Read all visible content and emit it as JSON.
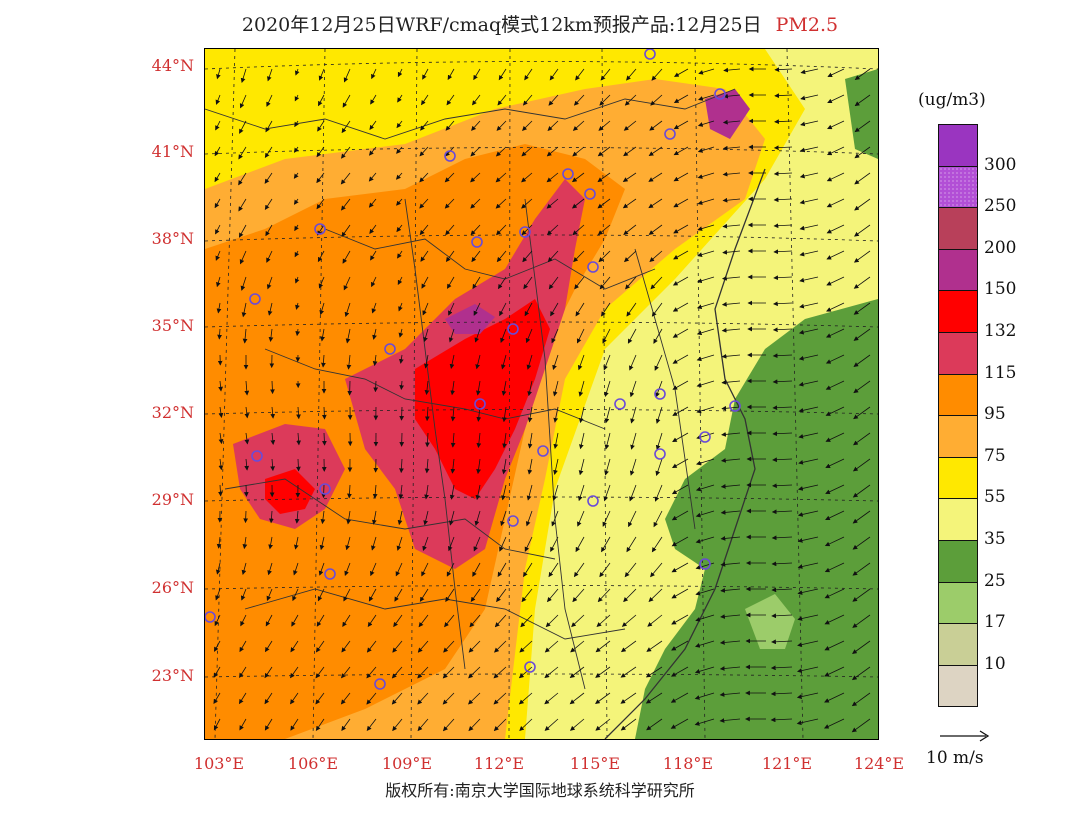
{
  "title": {
    "main": "2020年12月25日WRF/cmaq模式12km预报产品:12月25日",
    "variable": "PM2.5"
  },
  "axes": {
    "lat_labels": [
      "44°N",
      "41°N",
      "38°N",
      "35°N",
      "32°N",
      "29°N",
      "26°N",
      "23°N"
    ],
    "lon_labels": [
      "103°E",
      "106°E",
      "109°E",
      "112°E",
      "115°E",
      "118°E",
      "121°E",
      "124°E"
    ]
  },
  "colorbar": {
    "unit": "(ug/m3)",
    "levels": [
      "300",
      "250",
      "200",
      "150",
      "132",
      "115",
      "95",
      "75",
      "55",
      "35",
      "25",
      "17",
      "10"
    ],
    "colors": [
      "#9a35c0",
      "#b24fd6",
      "#b8405a",
      "#b0308e",
      "#ff0000",
      "#dc3a5a",
      "#ff8c00",
      "#ffad33",
      "#ffe800",
      "#f4f47a",
      "#5c9e3a",
      "#9ccc6a",
      "#c9cf96",
      "#ddd4c3"
    ]
  },
  "wind_reference": {
    "label": "10 m/s"
  },
  "stations": [
    "o",
    "o",
    "o",
    "o",
    "o",
    "o",
    "o",
    "o",
    "o",
    "o",
    "o",
    "o",
    "o",
    "o",
    "o",
    "o",
    "o",
    "o",
    "o",
    "o",
    "o",
    "o",
    "o",
    "o",
    "o",
    "o",
    "o",
    "o",
    "o"
  ],
  "copyright": "版权所有:南京大学国际地球系统科学研究所"
}
